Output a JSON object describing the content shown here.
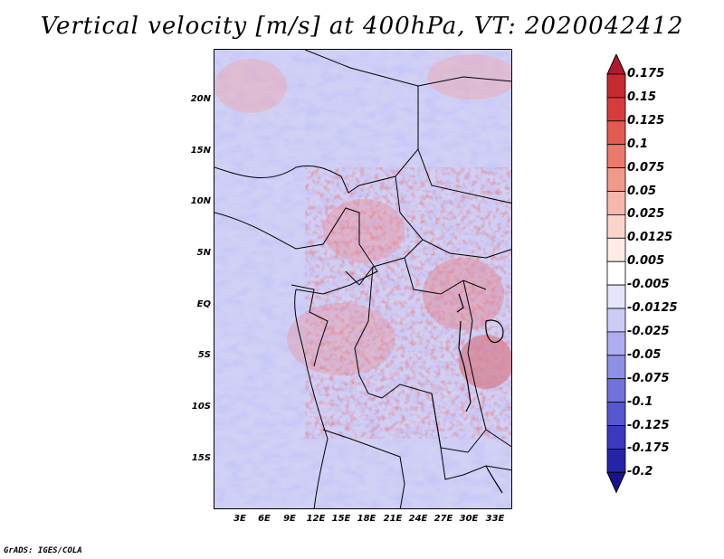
{
  "title": "Vertical velocity [m/s] at 400hPa, VT: 2020042412",
  "credit": "GrADS: IGES/COLA",
  "map": {
    "lat_labels": [
      "20N",
      "15N",
      "10N",
      "5N",
      "EQ",
      "5S",
      "10S",
      "15S"
    ],
    "lon_labels": [
      "3E",
      "6E",
      "9E",
      "12E",
      "15E",
      "18E",
      "21E",
      "24E",
      "27E",
      "30E",
      "33E"
    ]
  },
  "colorbar": {
    "labels": [
      "0.175",
      "0.15",
      "0.125",
      "0.1",
      "0.075",
      "0.05",
      "0.025",
      "0.0125",
      "0.005",
      "-0.005",
      "-0.0125",
      "-0.025",
      "-0.05",
      "-0.075",
      "-0.1",
      "-0.125",
      "-0.175",
      "-0.2"
    ],
    "colors": [
      "#b2182b",
      "#c62a2e",
      "#d73c3c",
      "#e25a52",
      "#ea7a6d",
      "#f19a8c",
      "#f6b8ac",
      "#fad3ca",
      "#fdebe6",
      "#ffffff",
      "#e4e4fa",
      "#cbcbf5",
      "#adadef",
      "#8f8fe6",
      "#7272dc",
      "#5656d0",
      "#3a3ac0",
      "#2424a8",
      "#141490"
    ]
  }
}
